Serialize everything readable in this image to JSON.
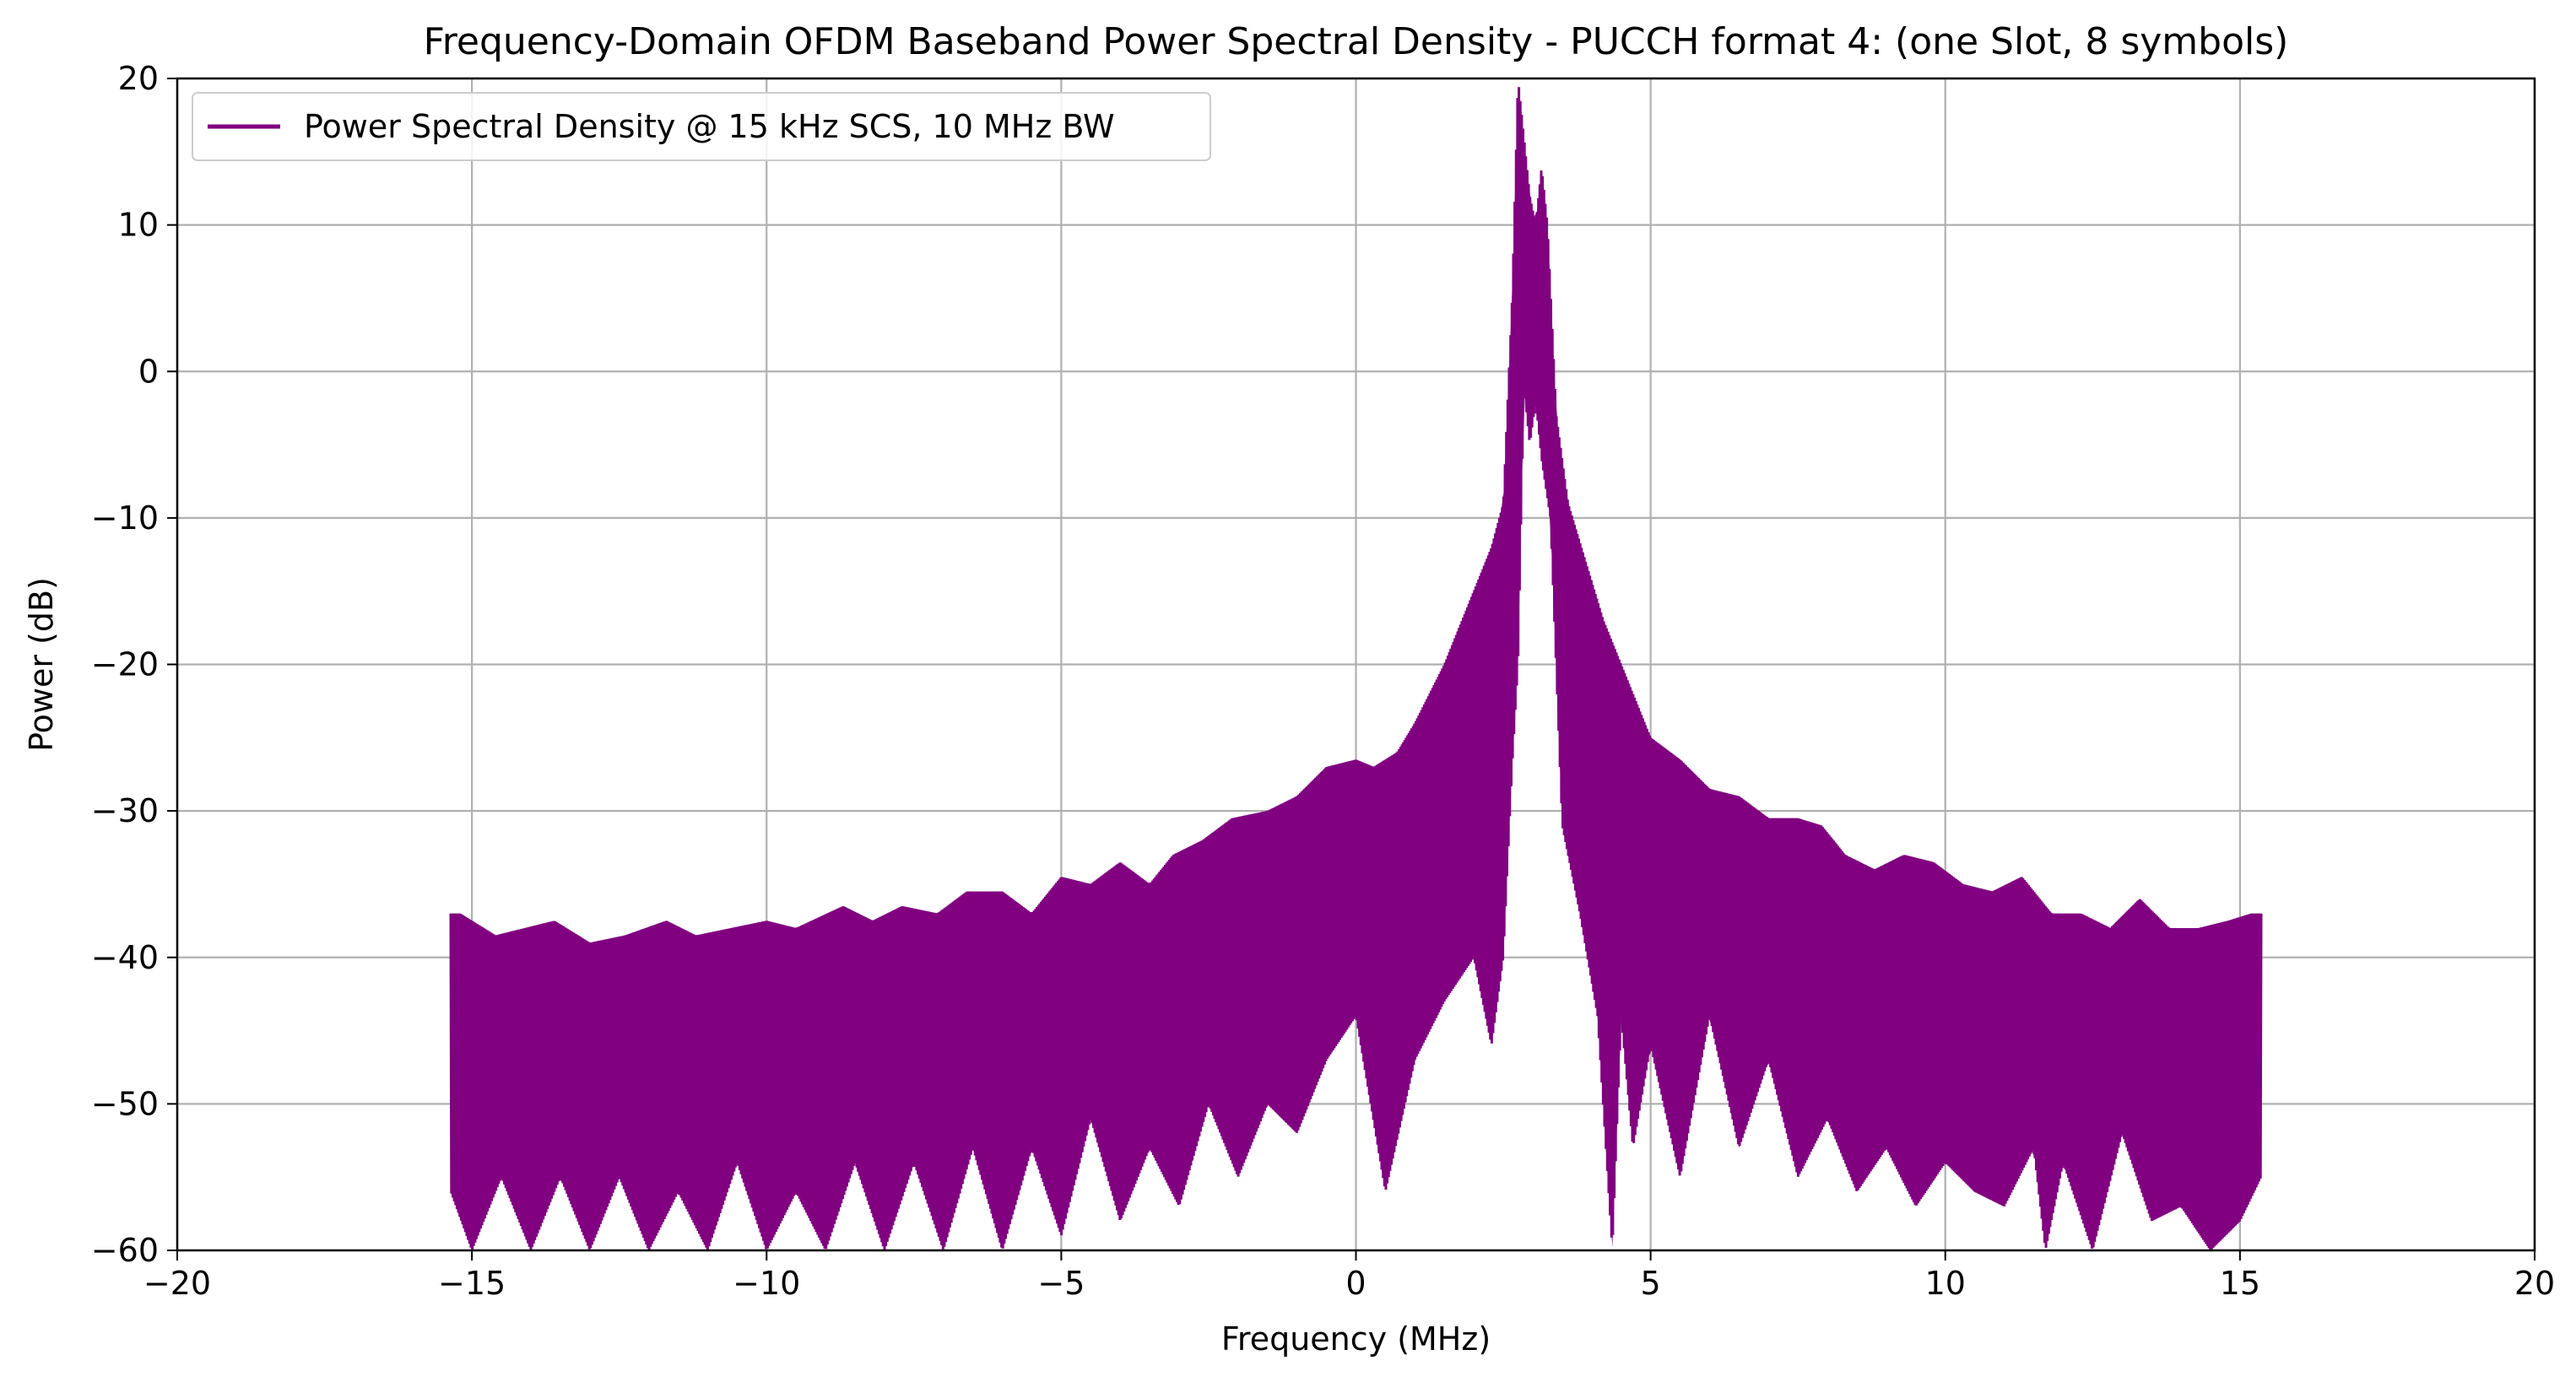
{
  "chart_data": {
    "type": "line",
    "title": "Frequency-Domain OFDM Baseband Power Spectral Density - PUCCH format 4: (one Slot, 8 symbols)",
    "xlabel": "Frequency (MHz)",
    "ylabel": "Power (dB)",
    "xlim": [
      -20,
      20
    ],
    "ylim": [
      -60,
      20
    ],
    "xticks": [
      -20,
      -15,
      -10,
      -5,
      0,
      5,
      10,
      15,
      20
    ],
    "xtick_labels": [
      "−20",
      "−15",
      "−10",
      "−5",
      "0",
      "5",
      "10",
      "15",
      "20"
    ],
    "yticks": [
      20,
      10,
      0,
      -10,
      -20,
      -30,
      -40,
      -50,
      -60
    ],
    "ytick_labels": [
      "20",
      "10",
      "0",
      "−10",
      "−20",
      "−30",
      "−40",
      "−50",
      "−60"
    ],
    "grid": true,
    "legend_position": "top-left",
    "series": [
      {
        "name": "Power Spectral Density @ 15 kHz SCS, 10 MHz BW",
        "color": "#800080",
        "envelope_upper": {
          "x": [
            -15.36,
            -15.2,
            -14.6,
            -14.1,
            -13.6,
            -13.0,
            -12.4,
            -11.7,
            -11.2,
            -10.6,
            -10.0,
            -9.5,
            -8.7,
            -8.2,
            -7.7,
            -7.1,
            -6.6,
            -6.0,
            -5.5,
            -5.0,
            -4.5,
            -4.0,
            -3.5,
            -3.1,
            -2.6,
            -2.1,
            -1.5,
            -1.0,
            -0.5,
            0.0,
            0.3,
            0.7,
            1.0,
            1.5,
            2.0,
            2.3,
            2.5,
            2.65,
            2.75,
            2.85,
            2.95,
            3.05,
            3.15,
            3.25,
            3.4,
            3.6,
            3.9,
            4.2,
            4.6,
            5.0,
            5.5,
            6.0,
            6.5,
            7.0,
            7.5,
            7.9,
            8.3,
            8.8,
            9.3,
            9.8,
            10.3,
            10.8,
            11.3,
            11.8,
            12.3,
            12.8,
            13.3,
            13.8,
            14.3,
            14.8,
            15.2,
            15.36
          ],
          "y": [
            -37,
            -37,
            -38.5,
            -38,
            -37.5,
            -39,
            -38.5,
            -37.5,
            -38.5,
            -38,
            -37.5,
            -38,
            -36.5,
            -37.5,
            -36.5,
            -37,
            -35.5,
            -35.5,
            -37,
            -34.5,
            -35,
            -33.5,
            -35,
            -33,
            -32,
            -30.5,
            -30,
            -29,
            -27,
            -26.5,
            -27,
            -26,
            -24,
            -20,
            -15,
            -12,
            -9,
            5,
            20,
            16,
            12,
            10,
            14,
            10,
            -3,
            -9,
            -13,
            -17,
            -21,
            -25,
            -26.5,
            -28.5,
            -29,
            -30.5,
            -30.5,
            -31,
            -33,
            -34,
            -33,
            -33.5,
            -35,
            -35.5,
            -34.5,
            -37,
            -37,
            -38,
            -36,
            -38,
            -38,
            -37.5,
            -37,
            -37
          ]
        },
        "envelope_lower": {
          "x": [
            -15.36,
            -15.0,
            -14.5,
            -14.0,
            -13.5,
            -13.0,
            -12.5,
            -12.0,
            -11.5,
            -11.0,
            -10.5,
            -10.0,
            -9.5,
            -9.0,
            -8.5,
            -8.0,
            -7.5,
            -7.0,
            -6.5,
            -6.0,
            -5.5,
            -5.0,
            -4.5,
            -4.0,
            -3.5,
            -3.0,
            -2.5,
            -2.0,
            -1.5,
            -1.0,
            -0.5,
            0.0,
            0.5,
            1.0,
            1.5,
            2.0,
            2.3,
            2.5,
            2.65,
            2.75,
            2.85,
            2.95,
            3.05,
            3.15,
            3.3,
            3.5,
            3.8,
            4.1,
            4.35,
            4.5,
            4.7,
            5.0,
            5.5,
            6.0,
            6.5,
            7.0,
            7.5,
            8.0,
            8.5,
            9.0,
            9.5,
            10.0,
            10.5,
            11.0,
            11.5,
            11.7,
            12.0,
            12.5,
            13.0,
            13.5,
            14.0,
            14.5,
            15.0,
            15.36
          ],
          "y": [
            -56,
            -60,
            -55,
            -60,
            -55,
            -60,
            -55,
            -60,
            -56,
            -60,
            -54,
            -60,
            -56,
            -60,
            -54,
            -60,
            -54,
            -60,
            -53,
            -60,
            -53,
            -59,
            -51,
            -58,
            -53,
            -57,
            -50,
            -55,
            -50,
            -52,
            -47,
            -44,
            -56,
            -47,
            -43,
            -40,
            -46,
            -40,
            -27,
            -20,
            -1,
            -5,
            -2,
            -6,
            -10,
            -31,
            -37,
            -44,
            -60,
            -44,
            -53,
            -46,
            -55,
            -44,
            -53,
            -47,
            -55,
            -51,
            -56,
            -53,
            -57,
            -54,
            -56,
            -57,
            -53,
            -60,
            -54,
            -60,
            -52,
            -58,
            -57,
            -60,
            -58,
            -55
          ]
        }
      }
    ]
  }
}
